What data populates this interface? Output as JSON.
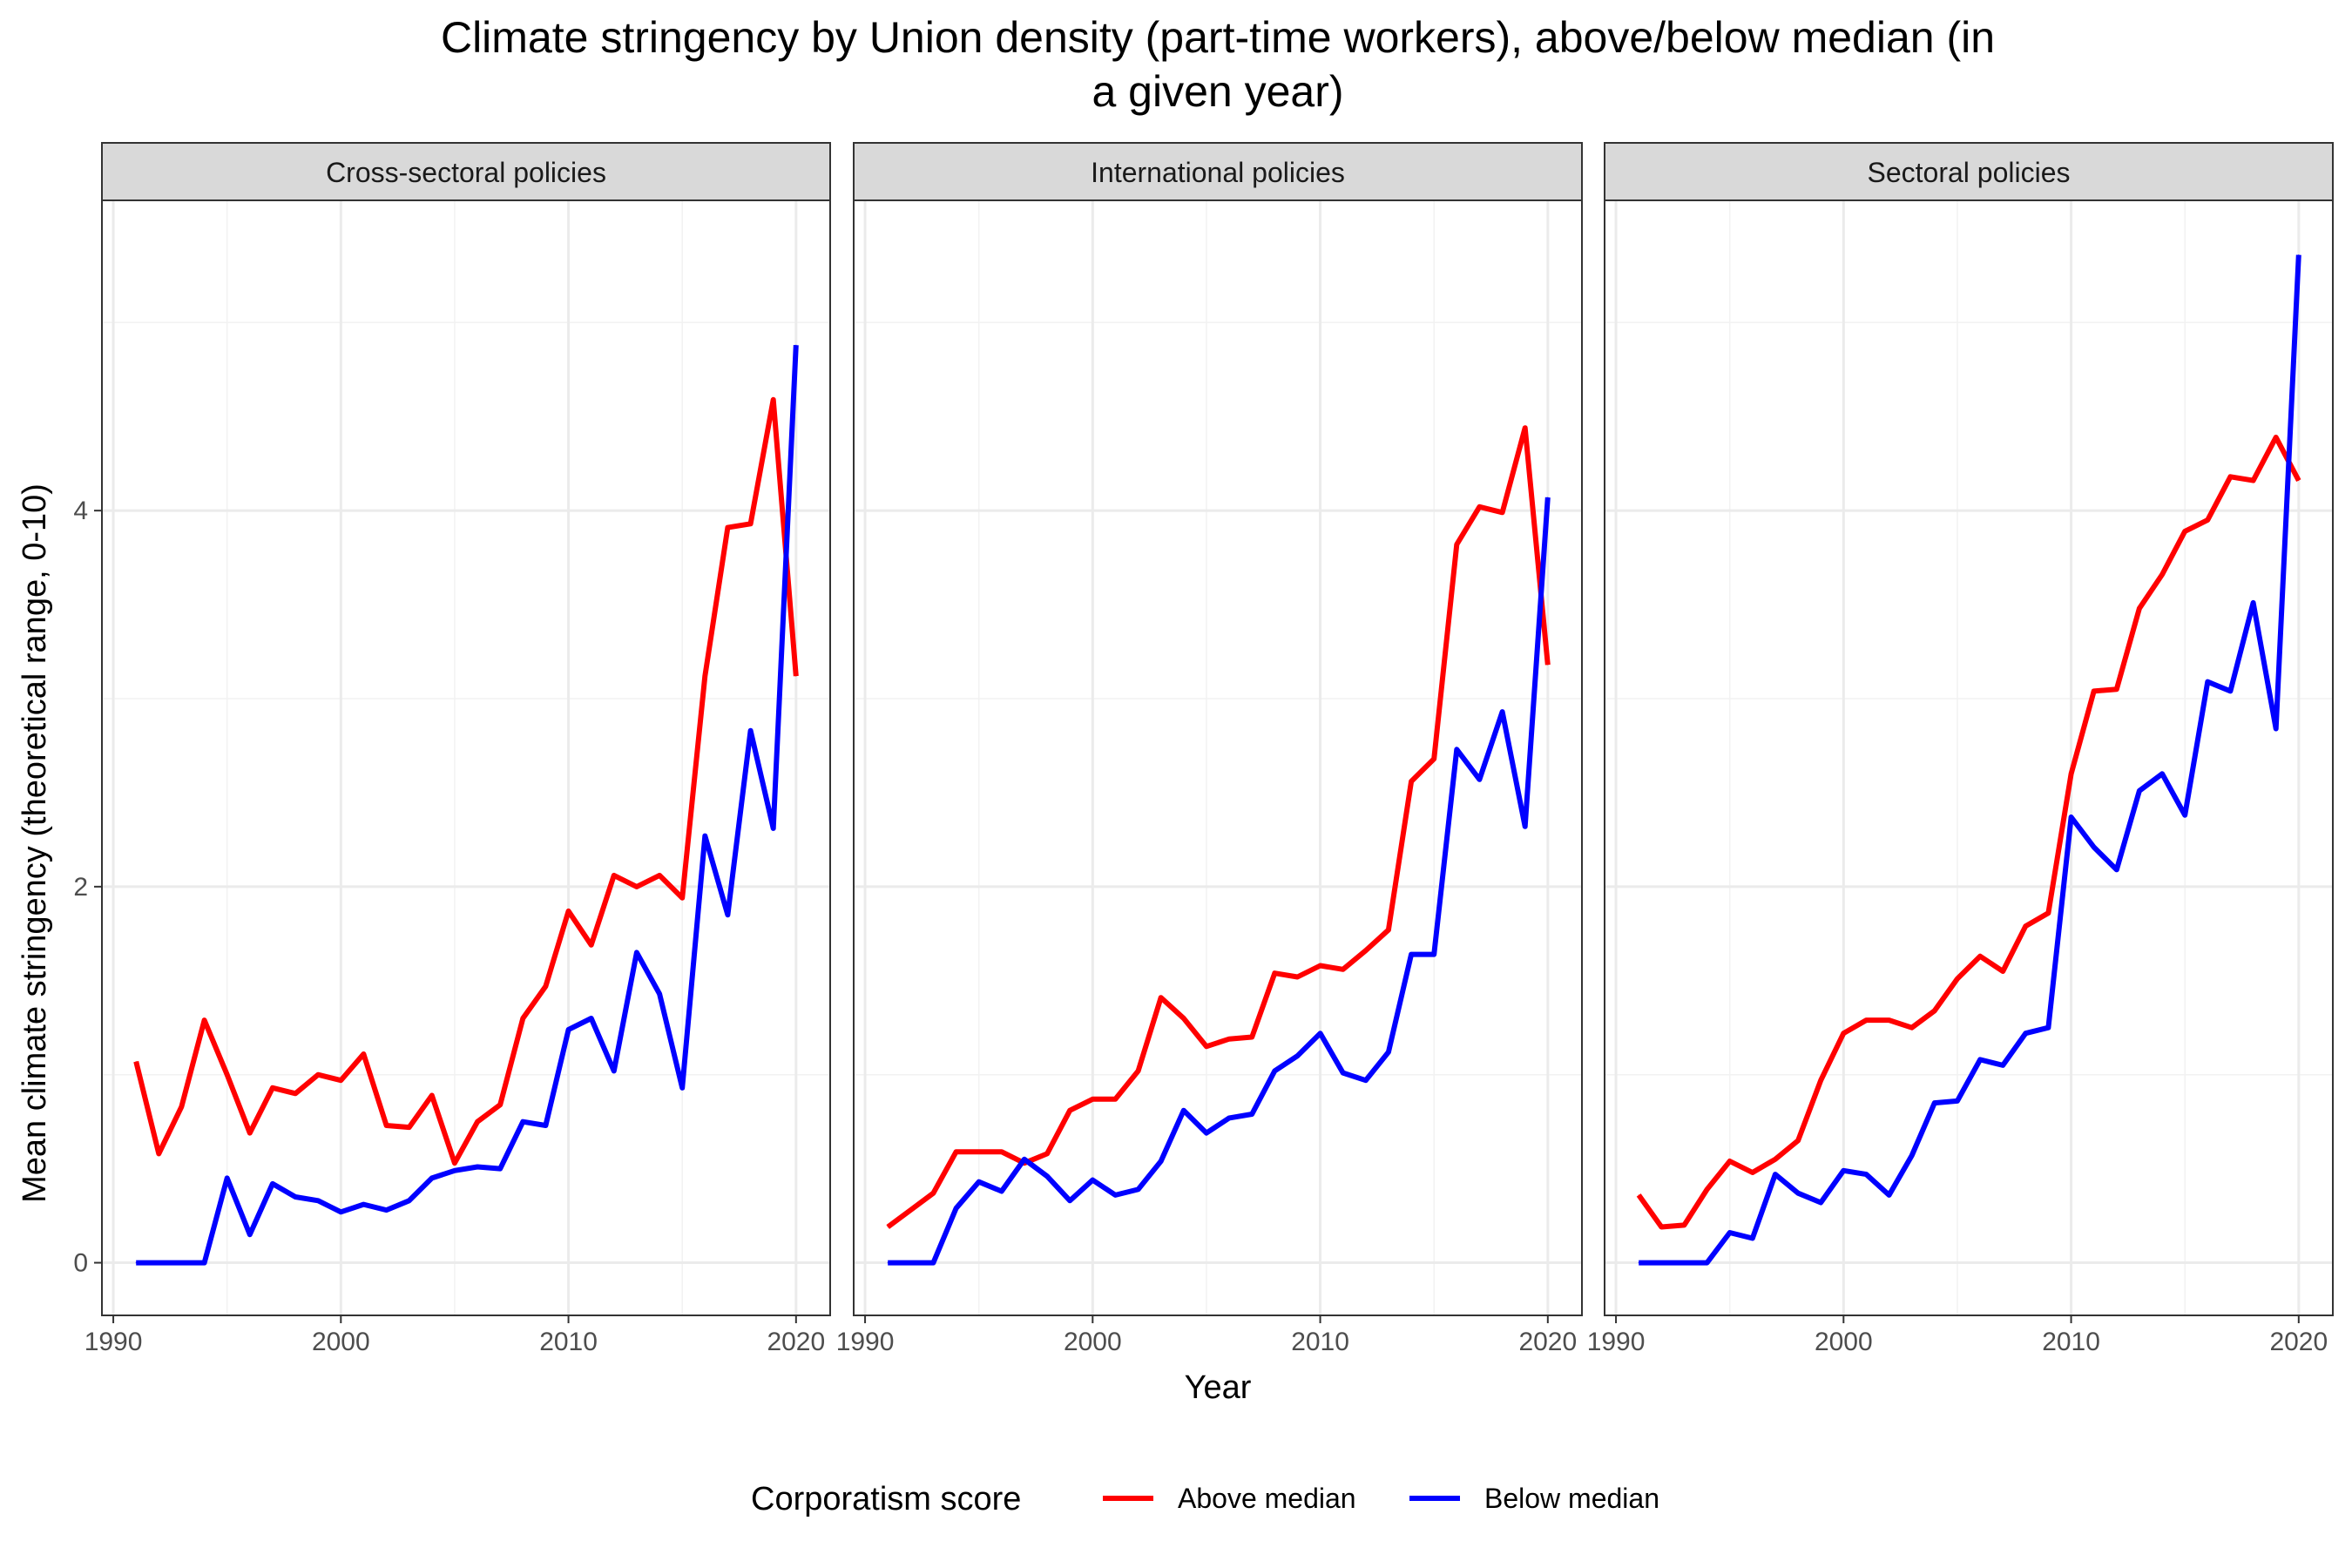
{
  "chart_data": {
    "type": "line",
    "title_lines": [
      "Climate stringency by Union density (part-time workers), above/below median (in",
      "a given year)"
    ],
    "xlabel": "Year",
    "ylabel": "Mean climate stringency (theoretical range, 0-10)",
    "xlim": [
      1989.5,
      2021.5
    ],
    "ylim": [
      -0.28,
      5.65
    ],
    "x_ticks": [
      1990,
      2000,
      2010,
      2020
    ],
    "x_tick_labels": [
      "1990",
      "2000",
      "2010",
      "2020"
    ],
    "y_ticks": [
      0,
      2,
      4
    ],
    "y_tick_labels": [
      "0",
      "2",
      "4"
    ],
    "grid": true,
    "legend": {
      "title": "Corporatism score",
      "position": "bottom",
      "entries": [
        {
          "label": "Above median",
          "color": "#ff0000"
        },
        {
          "label": "Below median",
          "color": "#0000ff"
        }
      ]
    },
    "x": [
      1991,
      1992,
      1993,
      1994,
      1995,
      1996,
      1997,
      1998,
      1999,
      2000,
      2001,
      2002,
      2003,
      2004,
      2005,
      2006,
      2007,
      2008,
      2009,
      2010,
      2011,
      2012,
      2013,
      2014,
      2015,
      2016,
      2017,
      2018,
      2019,
      2020
    ],
    "panels": [
      {
        "label": "Cross-sectoral policies",
        "series": [
          {
            "name": "Above median",
            "color": "#ff0000",
            "values": [
              1.07,
              0.58,
              0.83,
              1.29,
              1.0,
              0.69,
              0.93,
              0.9,
              1.0,
              0.97,
              1.11,
              0.73,
              0.72,
              0.89,
              0.53,
              0.75,
              0.84,
              1.3,
              1.47,
              1.87,
              1.69,
              2.06,
              2.0,
              2.06,
              1.94,
              3.12,
              3.91,
              3.93,
              4.59,
              3.12
            ]
          },
          {
            "name": "Below median",
            "color": "#0000ff",
            "values": [
              0,
              0,
              0,
              0,
              0.45,
              0.15,
              0.42,
              0.35,
              0.33,
              0.27,
              0.31,
              0.28,
              0.33,
              0.45,
              0.49,
              0.51,
              0.5,
              0.75,
              0.73,
              1.24,
              1.3,
              1.02,
              1.65,
              1.43,
              0.93,
              2.27,
              1.85,
              2.83,
              2.31,
              4.88
            ]
          }
        ]
      },
      {
        "label": "International policies",
        "series": [
          {
            "name": "Above median",
            "color": "#ff0000",
            "values": [
              0.19,
              0.28,
              0.37,
              0.59,
              0.59,
              0.59,
              0.53,
              0.58,
              0.81,
              0.87,
              0.87,
              1.02,
              1.41,
              1.3,
              1.15,
              1.19,
              1.2,
              1.54,
              1.52,
              1.58,
              1.56,
              1.66,
              1.77,
              2.56,
              2.68,
              3.82,
              4.02,
              3.99,
              4.44,
              3.18
            ]
          },
          {
            "name": "Below median",
            "color": "#0000ff",
            "values": [
              0,
              0,
              0,
              0.29,
              0.43,
              0.38,
              0.55,
              0.46,
              0.33,
              0.44,
              0.36,
              0.39,
              0.54,
              0.81,
              0.69,
              0.77,
              0.79,
              1.02,
              1.1,
              1.22,
              1.01,
              0.97,
              1.12,
              1.64,
              1.64,
              2.73,
              2.57,
              2.93,
              2.32,
              4.07
            ]
          }
        ]
      },
      {
        "label": "Sectoral policies",
        "series": [
          {
            "name": "Above median",
            "color": "#ff0000",
            "values": [
              0.36,
              0.19,
              0.2,
              0.39,
              0.54,
              0.48,
              0.55,
              0.65,
              0.97,
              1.22,
              1.29,
              1.29,
              1.25,
              1.34,
              1.51,
              1.63,
              1.55,
              1.79,
              1.86,
              2.6,
              3.04,
              3.05,
              3.48,
              3.66,
              3.89,
              3.95,
              4.18,
              4.16,
              4.39,
              4.16
            ]
          },
          {
            "name": "Below median",
            "color": "#0000ff",
            "values": [
              0,
              0,
              0,
              0,
              0.16,
              0.13,
              0.47,
              0.37,
              0.32,
              0.49,
              0.47,
              0.36,
              0.57,
              0.85,
              0.86,
              1.08,
              1.05,
              1.22,
              1.25,
              2.37,
              2.21,
              2.09,
              2.51,
              2.6,
              2.38,
              3.09,
              3.04,
              3.51,
              2.84,
              5.36
            ]
          }
        ]
      }
    ]
  }
}
